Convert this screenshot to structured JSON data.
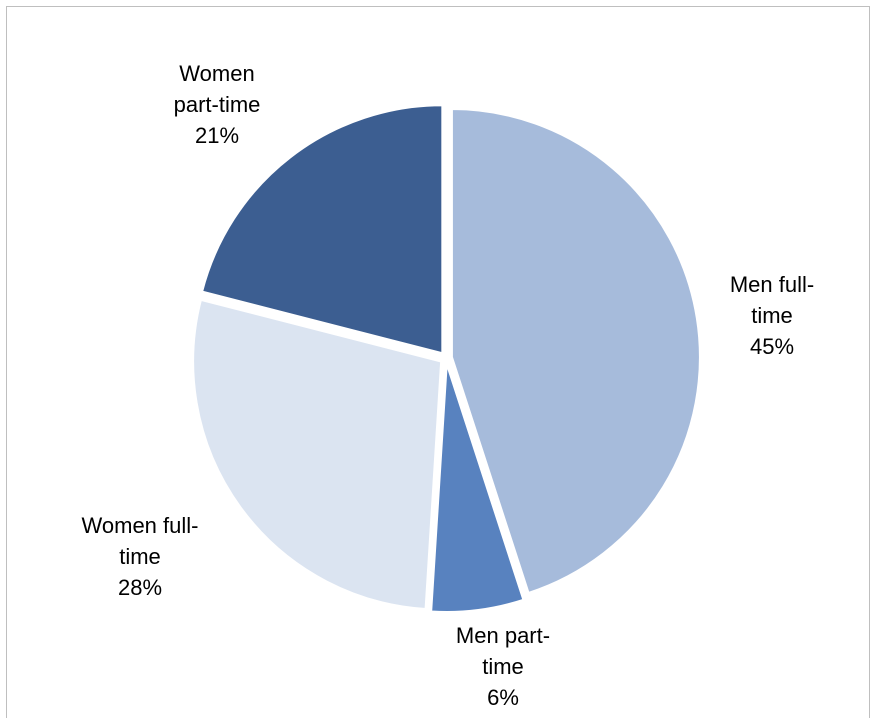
{
  "chart_data": {
    "type": "pie",
    "slices": [
      {
        "name": "Men full-time",
        "value": 45,
        "label_lines": [
          "Men full-",
          "time",
          "45%"
        ],
        "color": "#a6bbdb"
      },
      {
        "name": "Men part-time",
        "value": 6,
        "label_lines": [
          "Men part-",
          "time",
          "6%"
        ],
        "color": "#5882bf"
      },
      {
        "name": "Women full-time",
        "value": 28,
        "label_lines": [
          "Women full-",
          "time",
          "28%"
        ],
        "color": "#dbe4f1"
      },
      {
        "name": "Women part-time",
        "value": 21,
        "label_lines": [
          "Women",
          "part-time",
          "21%"
        ],
        "color": "#3c5e91"
      }
    ],
    "start_angle_deg": 0,
    "direction": "clockwise",
    "exploded": true,
    "legend": "none",
    "labels": "outside"
  }
}
